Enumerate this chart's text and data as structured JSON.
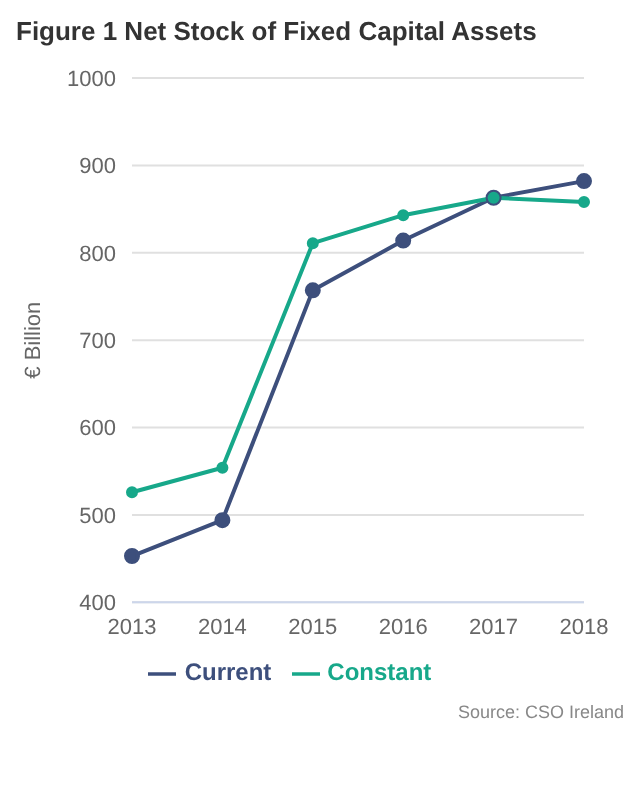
{
  "chart_data": {
    "type": "line",
    "title": "Figure 1 Net Stock of Fixed Capital Assets",
    "ylabel": "€ Billion",
    "categories": [
      "2013",
      "2014",
      "2015",
      "2016",
      "2017",
      "2018"
    ],
    "series": [
      {
        "name": "Current",
        "color": "#3d4f7c",
        "values": [
          453,
          494,
          757,
          814,
          863,
          882
        ]
      },
      {
        "name": "Constant",
        "color": "#17a88a",
        "values": [
          526,
          554,
          811,
          843,
          863,
          858
        ]
      }
    ],
    "ylim": [
      400,
      1000
    ],
    "yticks": [
      400,
      500,
      600,
      700,
      800,
      900,
      1000
    ],
    "grid": "y",
    "legend": "bottom",
    "marker": "circle",
    "line_style": "solid",
    "annotations": [
      "Source: CSO Ireland"
    ]
  }
}
